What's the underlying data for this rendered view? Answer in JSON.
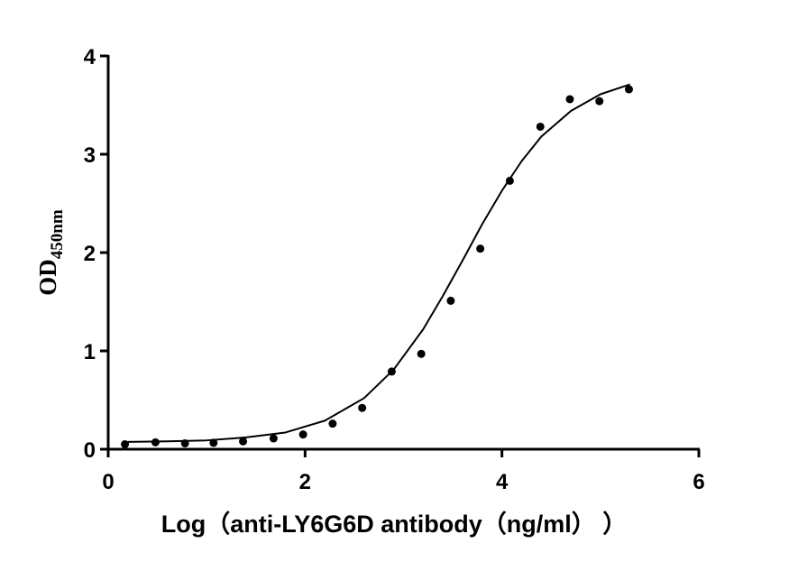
{
  "chart_data": {
    "type": "scatter",
    "x_label": "Log（anti-LY6G6D antibody（ng/ml） ）",
    "y_label": "OD",
    "y_label_subscript": "450nm",
    "x": [
      0.17,
      0.48,
      0.78,
      1.07,
      1.37,
      1.68,
      1.98,
      2.28,
      2.58,
      2.88,
      3.18,
      3.48,
      3.78,
      4.08,
      4.39,
      4.69,
      4.99,
      5.29
    ],
    "values": [
      0.05,
      0.07,
      0.06,
      0.065,
      0.08,
      0.11,
      0.15,
      0.26,
      0.42,
      0.79,
      0.97,
      1.51,
      2.04,
      2.73,
      3.28,
      3.56,
      3.54,
      3.66
    ],
    "color": "#000000",
    "fit_curve": {
      "x": [
        0.2,
        0.6,
        1.0,
        1.4,
        1.8,
        2.2,
        2.6,
        2.9,
        3.2,
        3.4,
        3.6,
        3.8,
        4.0,
        4.2,
        4.4,
        4.7,
        5.0,
        5.3
      ],
      "values": [
        0.075,
        0.08,
        0.09,
        0.12,
        0.17,
        0.29,
        0.52,
        0.81,
        1.22,
        1.56,
        1.92,
        2.29,
        2.63,
        2.93,
        3.18,
        3.44,
        3.61,
        3.71
      ]
    },
    "xlim": [
      0,
      6
    ],
    "xticks": [
      0,
      2,
      4,
      6
    ],
    "ylim": [
      0,
      4
    ],
    "yticks": [
      0,
      1,
      2,
      3,
      4
    ]
  }
}
